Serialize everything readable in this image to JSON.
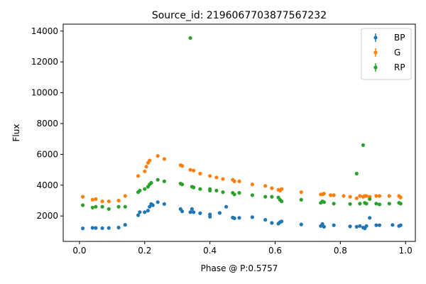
{
  "chart_data": {
    "type": "scatter",
    "title": "Source_id: 2196067703877567232",
    "xlabel": "Phase @ P:0.5757",
    "ylabel": "Flux",
    "xlim": [
      -0.05,
      1.03
    ],
    "ylim": [
      350,
      14450
    ],
    "xticks": [
      0.0,
      0.2,
      0.4,
      0.6,
      0.8,
      1.0
    ],
    "xtick_labels": [
      "0.0",
      "0.2",
      "0.4",
      "0.6",
      "0.8",
      "1.0"
    ],
    "yticks": [
      2000,
      4000,
      6000,
      8000,
      10000,
      12000,
      14000
    ],
    "ytick_labels": [
      "2000",
      "4000",
      "6000",
      "8000",
      "10000",
      "12000",
      "14000"
    ],
    "legend_position": "top-right",
    "grid": false,
    "series": [
      {
        "name": "BP",
        "color": "#1f77b4",
        "points": [
          [
            0.01,
            1200
          ],
          [
            0.04,
            1230
          ],
          [
            0.05,
            1220
          ],
          [
            0.07,
            1210
          ],
          [
            0.09,
            1220
          ],
          [
            0.12,
            1250
          ],
          [
            0.14,
            1430
          ],
          [
            0.18,
            2050
          ],
          [
            0.185,
            2250
          ],
          [
            0.2,
            2250
          ],
          [
            0.21,
            2350
          ],
          [
            0.215,
            2600
          ],
          [
            0.22,
            2780
          ],
          [
            0.225,
            2700
          ],
          [
            0.24,
            2900
          ],
          [
            0.26,
            2780
          ],
          [
            0.31,
            2450
          ],
          [
            0.315,
            2300
          ],
          [
            0.34,
            2250
          ],
          [
            0.345,
            2450
          ],
          [
            0.35,
            2250
          ],
          [
            0.37,
            2180
          ],
          [
            0.4,
            2100
          ],
          [
            0.4,
            1950
          ],
          [
            0.43,
            2200
          ],
          [
            0.45,
            2600
          ],
          [
            0.47,
            1900
          ],
          [
            0.475,
            1850
          ],
          [
            0.49,
            1880
          ],
          [
            0.53,
            1920
          ],
          [
            0.57,
            1750
          ],
          [
            0.59,
            1550
          ],
          [
            0.61,
            1500
          ],
          [
            0.615,
            1600
          ],
          [
            0.62,
            1650
          ],
          [
            0.68,
            1450
          ],
          [
            0.74,
            1350
          ],
          [
            0.745,
            1480
          ],
          [
            0.75,
            1300
          ],
          [
            0.78,
            1400
          ],
          [
            0.83,
            1320
          ],
          [
            0.85,
            1300
          ],
          [
            0.86,
            1350
          ],
          [
            0.87,
            1250
          ],
          [
            0.875,
            1200
          ],
          [
            0.88,
            1350
          ],
          [
            0.89,
            1880
          ],
          [
            0.91,
            1400
          ],
          [
            0.92,
            1400
          ],
          [
            0.96,
            1420
          ],
          [
            0.98,
            1350
          ],
          [
            0.985,
            1400
          ]
        ]
      },
      {
        "name": "G",
        "color": "#ff7f0e",
        "points": [
          [
            0.01,
            3250
          ],
          [
            0.04,
            3050
          ],
          [
            0.05,
            3100
          ],
          [
            0.07,
            2950
          ],
          [
            0.09,
            2950
          ],
          [
            0.12,
            3000
          ],
          [
            0.14,
            3300
          ],
          [
            0.18,
            4600
          ],
          [
            0.2,
            4900
          ],
          [
            0.205,
            5200
          ],
          [
            0.21,
            5450
          ],
          [
            0.215,
            5600
          ],
          [
            0.24,
            5900
          ],
          [
            0.26,
            5700
          ],
          [
            0.31,
            5300
          ],
          [
            0.315,
            5250
          ],
          [
            0.34,
            5000
          ],
          [
            0.35,
            4950
          ],
          [
            0.37,
            4750
          ],
          [
            0.4,
            4600
          ],
          [
            0.42,
            4500
          ],
          [
            0.44,
            4400
          ],
          [
            0.47,
            4350
          ],
          [
            0.475,
            4250
          ],
          [
            0.49,
            4250
          ],
          [
            0.53,
            4050
          ],
          [
            0.57,
            3950
          ],
          [
            0.59,
            3800
          ],
          [
            0.61,
            3700
          ],
          [
            0.615,
            3650
          ],
          [
            0.62,
            3750
          ],
          [
            0.68,
            3550
          ],
          [
            0.74,
            3400
          ],
          [
            0.745,
            3400
          ],
          [
            0.75,
            3450
          ],
          [
            0.77,
            3350
          ],
          [
            0.78,
            3350
          ],
          [
            0.81,
            3300
          ],
          [
            0.83,
            3250
          ],
          [
            0.85,
            3150
          ],
          [
            0.86,
            3300
          ],
          [
            0.87,
            3250
          ],
          [
            0.875,
            3300
          ],
          [
            0.88,
            3300
          ],
          [
            0.89,
            3250
          ],
          [
            0.91,
            3300
          ],
          [
            0.92,
            3300
          ],
          [
            0.95,
            3300
          ],
          [
            0.98,
            3300
          ],
          [
            0.985,
            3200
          ]
        ]
      },
      {
        "name": "RP",
        "color": "#2ca02c",
        "points": [
          [
            0.01,
            2700
          ],
          [
            0.04,
            2550
          ],
          [
            0.05,
            2600
          ],
          [
            0.07,
            2600
          ],
          [
            0.09,
            2450
          ],
          [
            0.12,
            2600
          ],
          [
            0.14,
            2600
          ],
          [
            0.18,
            3550
          ],
          [
            0.185,
            3650
          ],
          [
            0.2,
            3750
          ],
          [
            0.21,
            3900
          ],
          [
            0.215,
            4050
          ],
          [
            0.22,
            4150
          ],
          [
            0.24,
            4350
          ],
          [
            0.26,
            4250
          ],
          [
            0.31,
            4100
          ],
          [
            0.315,
            4050
          ],
          [
            0.34,
            13550
          ],
          [
            0.345,
            3900
          ],
          [
            0.35,
            3850
          ],
          [
            0.37,
            3750
          ],
          [
            0.4,
            3750
          ],
          [
            0.4,
            3650
          ],
          [
            0.42,
            3650
          ],
          [
            0.44,
            3550
          ],
          [
            0.47,
            3500
          ],
          [
            0.475,
            3400
          ],
          [
            0.49,
            3500
          ],
          [
            0.53,
            3350
          ],
          [
            0.57,
            3250
          ],
          [
            0.59,
            3250
          ],
          [
            0.61,
            3200
          ],
          [
            0.615,
            3050
          ],
          [
            0.62,
            2950
          ],
          [
            0.68,
            3050
          ],
          [
            0.74,
            2850
          ],
          [
            0.745,
            2950
          ],
          [
            0.75,
            2900
          ],
          [
            0.78,
            2800
          ],
          [
            0.83,
            2780
          ],
          [
            0.85,
            4750
          ],
          [
            0.86,
            2800
          ],
          [
            0.87,
            6600
          ],
          [
            0.875,
            2850
          ],
          [
            0.88,
            2800
          ],
          [
            0.89,
            3100
          ],
          [
            0.91,
            2800
          ],
          [
            0.92,
            2750
          ],
          [
            0.95,
            2800
          ],
          [
            0.98,
            2850
          ],
          [
            0.985,
            2800
          ]
        ]
      }
    ]
  }
}
